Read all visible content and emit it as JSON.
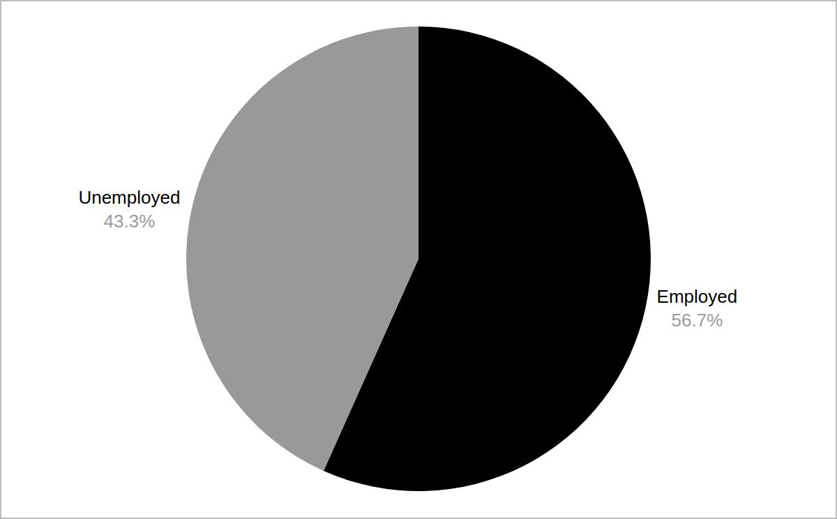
{
  "chart_data": {
    "type": "pie",
    "categories": [
      "Employed",
      "Unemployed"
    ],
    "values": [
      56.7,
      43.3
    ],
    "value_labels": [
      "56.7%",
      "43.3%"
    ],
    "colors": [
      "#000000",
      "#999999"
    ],
    "data_labels": true
  }
}
